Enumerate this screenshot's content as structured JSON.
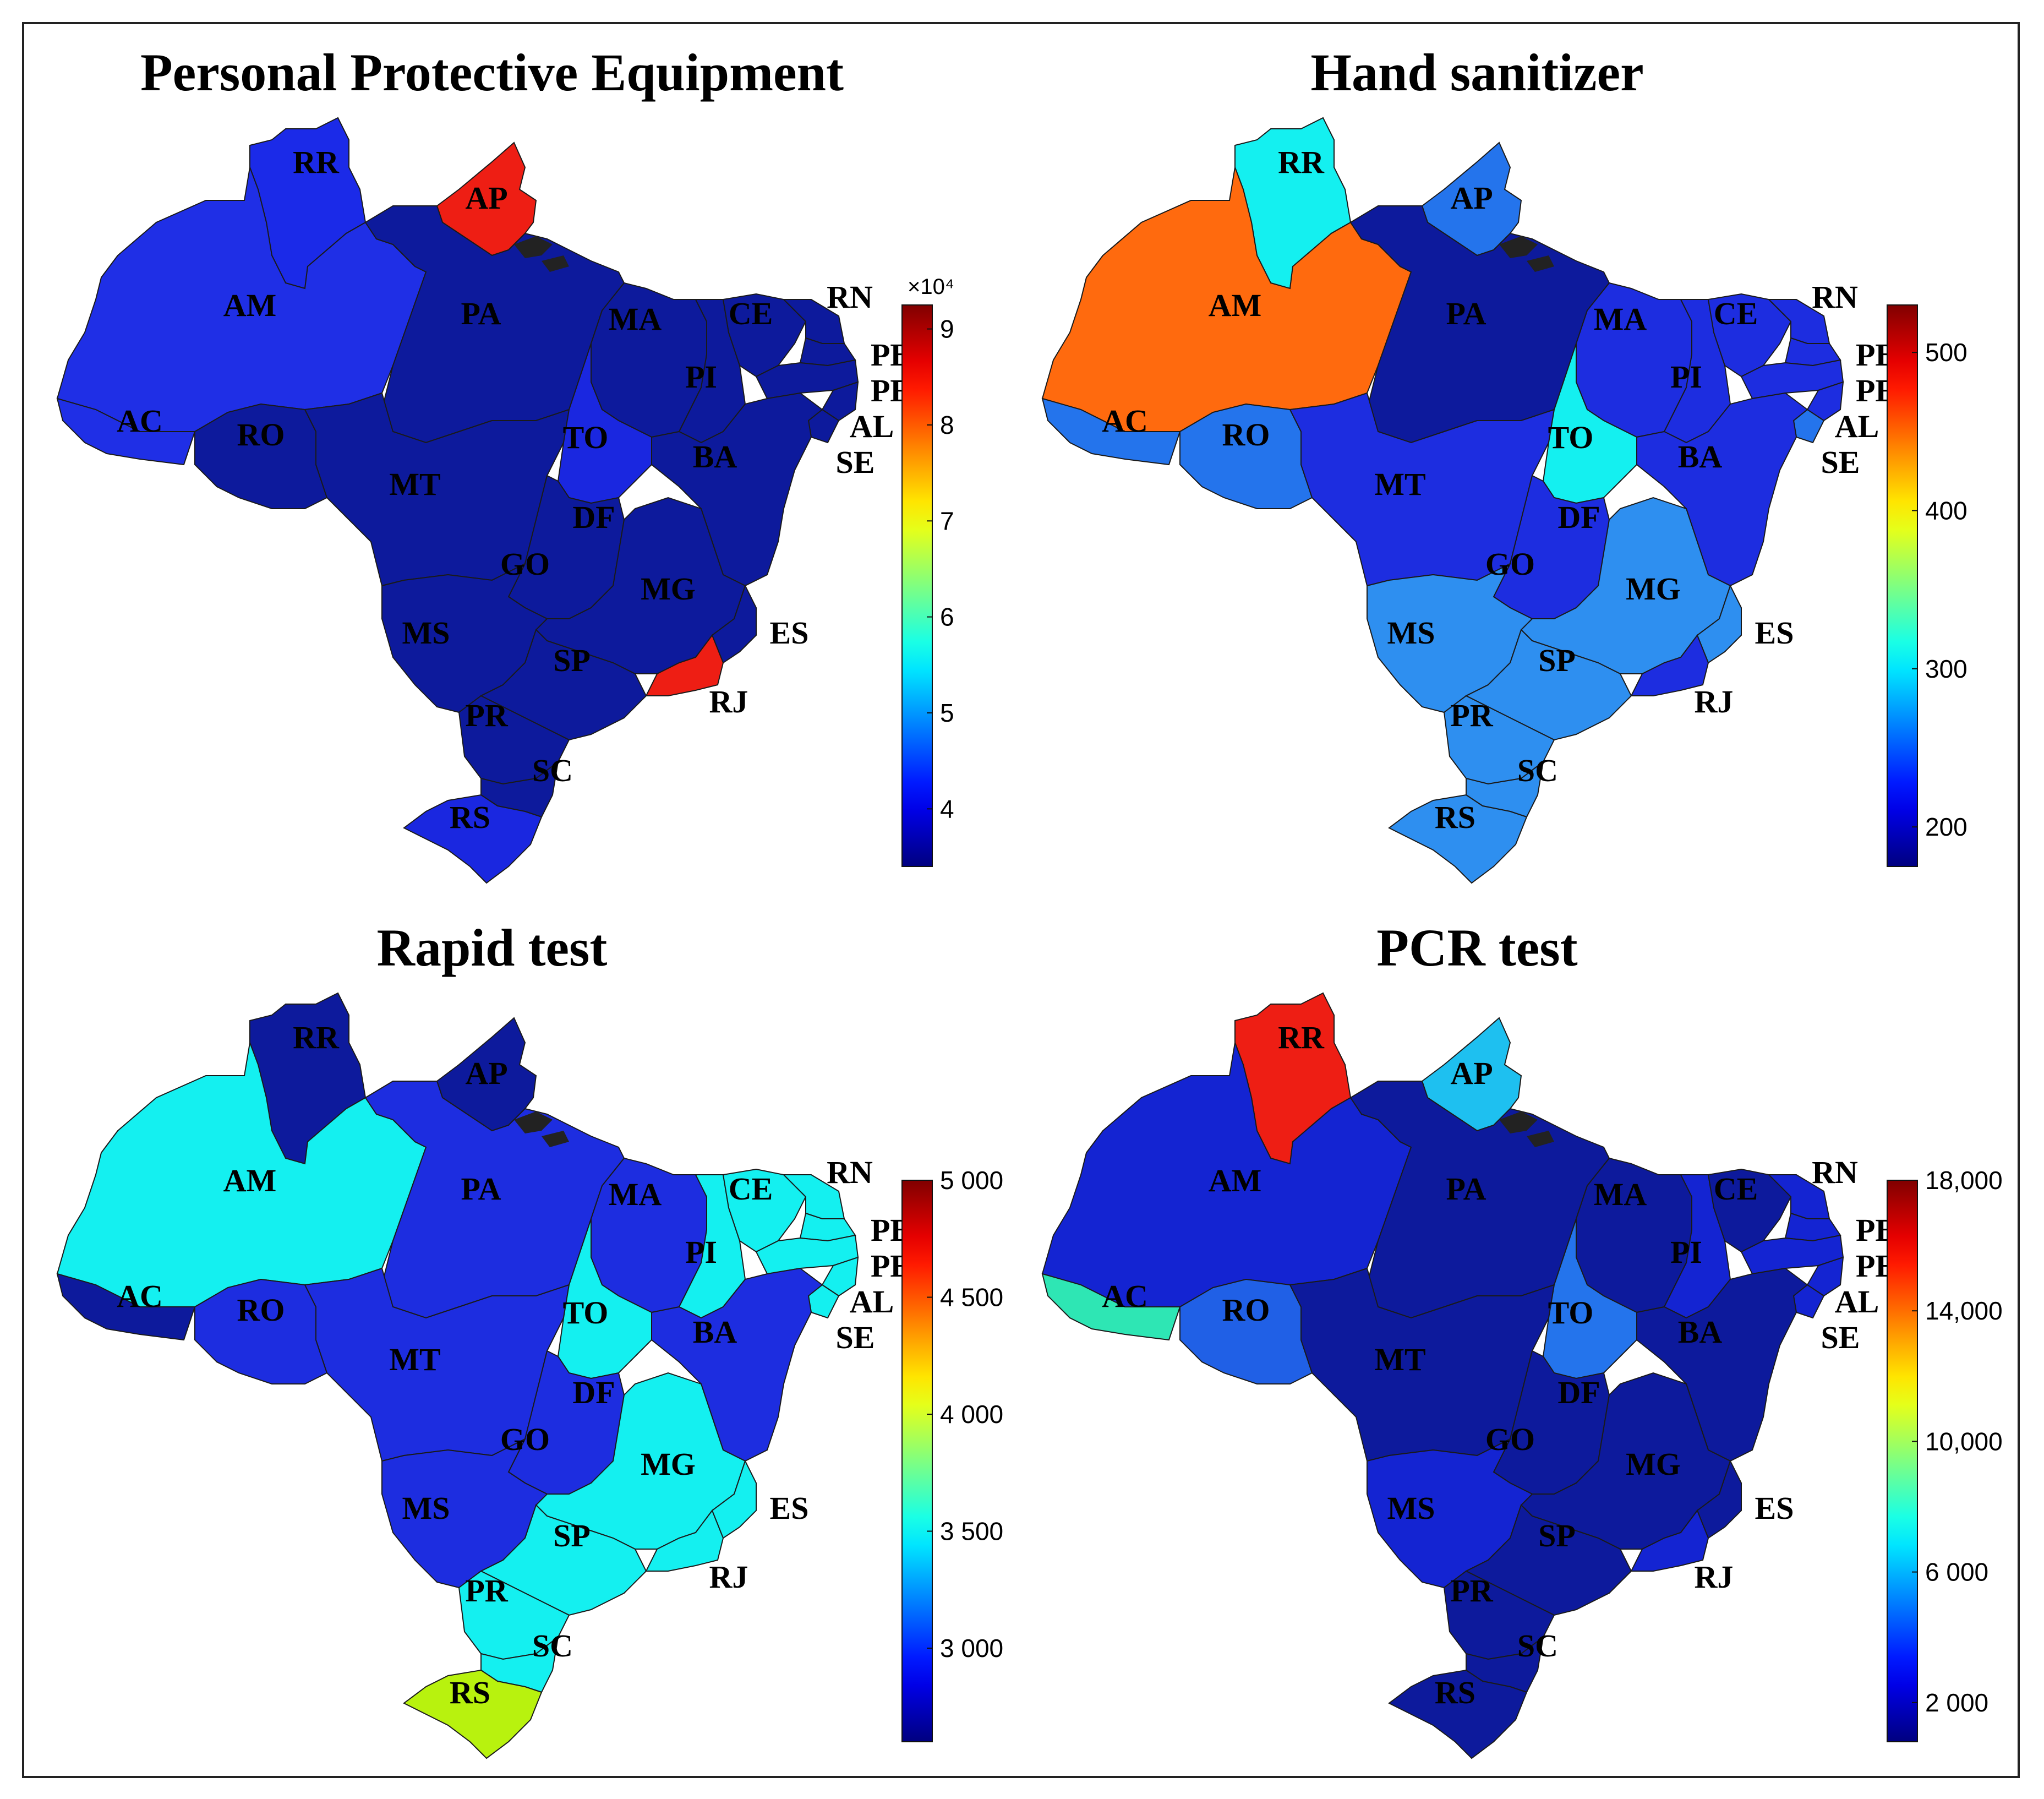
{
  "figure": {
    "panels": [
      {
        "id": "ppe",
        "title": "Personal Protective Equipment",
        "colorbar": {
          "exponent_label": "×10⁴",
          "ticks": [
            "4",
            "5",
            "6",
            "7",
            "8",
            "9"
          ],
          "tick_values": [
            4,
            5,
            6,
            7,
            8,
            9
          ],
          "min": 3.4,
          "max": 9.25
        },
        "colors": {
          "RR": "#1b2ae8",
          "AM": "#1f2fe6",
          "AC": "#1f2fe6",
          "AP": "#ee1e14",
          "PA": "#0d1a9c",
          "MA": "#0d1a9c",
          "PI": "#0d1a9c",
          "CE": "#0d1a9c",
          "RN": "#0d1a9c",
          "PB": "#0d1a9c",
          "PE": "#0d1a9c",
          "AL": "#0d1a9c",
          "SE": "#0d1a9c",
          "BA": "#0d1a9c",
          "RO": "#0d1a9c",
          "MT": "#0d1a9c",
          "TO": "#1a27e0",
          "GO": "#0d1a9c",
          "DF": "#22a6f0",
          "MG": "#0d1a9c",
          "MS": "#0d1a9c",
          "SP": "#0d1a9c",
          "ES": "#0d1a9c",
          "RJ": "#ee1e14",
          "PR": "#0d1a9c",
          "SC": "#0d1a9c",
          "RS": "#1a27e0"
        }
      },
      {
        "id": "sanitizer",
        "title": "Hand sanitizer",
        "colorbar": {
          "exponent_label": "",
          "ticks": [
            "200",
            "300",
            "400",
            "500"
          ],
          "tick_values": [
            200,
            300,
            400,
            500
          ],
          "min": 175,
          "max": 530
        },
        "colors": {
          "RR": "#14f0f0",
          "AM": "#ff6a0e",
          "AC": "#2474ec",
          "AP": "#2474ec",
          "PA": "#0d1a9c",
          "MA": "#1d2de0",
          "PI": "#1d2de0",
          "CE": "#1d2de0",
          "RN": "#1d2de0",
          "PB": "#1d2de0",
          "PE": "#1d2de0",
          "AL": "#1d2de0",
          "SE": "#2474ec",
          "BA": "#1d2de0",
          "RO": "#2474ec",
          "MT": "#1d2de0",
          "TO": "#14f0f0",
          "GO": "#1d2de0",
          "DF": "#c81515",
          "MG": "#2e8ff0",
          "MS": "#2e8ff0",
          "SP": "#2e8ff0",
          "ES": "#2e8ff0",
          "RJ": "#1d2de0",
          "PR": "#2e8ff0",
          "SC": "#2e8ff0",
          "RS": "#2e8ff0"
        }
      },
      {
        "id": "rapid",
        "title": "Rapid test",
        "colorbar": {
          "exponent_label": "",
          "ticks": [
            "3 000",
            "3 500",
            "4 000",
            "4 500",
            "5 000"
          ],
          "tick_values": [
            3000,
            3500,
            4000,
            4500,
            5000
          ],
          "min": 2600,
          "max": 5000
        },
        "colors": {
          "RR": "#0d1a9c",
          "AM": "#14f0f0",
          "AC": "#0d1a9c",
          "AP": "#0d1a9c",
          "PA": "#1d2de0",
          "MA": "#1d2de0",
          "PI": "#14f0f0",
          "CE": "#14f0f0",
          "RN": "#14f0f0",
          "PB": "#14f0f0",
          "PE": "#14f0f0",
          "AL": "#14f0f0",
          "SE": "#14f0f0",
          "BA": "#1d2de0",
          "RO": "#1d2de0",
          "MT": "#1d2de0",
          "TO": "#14f0f0",
          "GO": "#1d2de0",
          "DF": "#c81515",
          "MG": "#14f0f0",
          "MS": "#1d2de0",
          "SP": "#14f0f0",
          "ES": "#14f0f0",
          "RJ": "#14f0f0",
          "PR": "#14f0f0",
          "SC": "#14f0f0",
          "RS": "#b8f20e"
        }
      },
      {
        "id": "pcr",
        "title": "PCR test",
        "colorbar": {
          "exponent_label": "",
          "ticks": [
            "2 000",
            "6 000",
            "10,000",
            "14,000",
            "18,000"
          ],
          "tick_values": [
            2000,
            6000,
            10000,
            14000,
            18000
          ],
          "min": 800,
          "max": 18000
        },
        "colors": {
          "RR": "#ee1e14",
          "AM": "#1424d2",
          "AC": "#2ee6b4",
          "AP": "#1ec0f0",
          "PA": "#0d1a9c",
          "MA": "#0d1a9c",
          "PI": "#1424d2",
          "CE": "#0d1a9c",
          "RN": "#1424d2",
          "PB": "#1424d2",
          "PE": "#1424d2",
          "AL": "#1424d2",
          "SE": "#1424d2",
          "BA": "#0d1a9c",
          "RO": "#2060e6",
          "MT": "#0d1a9c",
          "TO": "#2474ec",
          "GO": "#0d1a9c",
          "DF": "#2474ec",
          "MG": "#0d1a9c",
          "MS": "#1424d2",
          "SP": "#0d1a9c",
          "ES": "#0d1a9c",
          "RJ": "#1424d2",
          "PR": "#0d1a9c",
          "SC": "#0d1a9c",
          "RS": "#0d1a9c"
        }
      }
    ],
    "state_labels": [
      "RR",
      "AP",
      "AM",
      "PA",
      "MA",
      "CE",
      "RN",
      "PB",
      "PE",
      "AL",
      "SE",
      "PI",
      "AC",
      "RO",
      "TO",
      "BA",
      "MT",
      "DF",
      "GO",
      "MG",
      "MS",
      "SP",
      "ES",
      "RJ",
      "PR",
      "SC",
      "RS"
    ]
  }
}
